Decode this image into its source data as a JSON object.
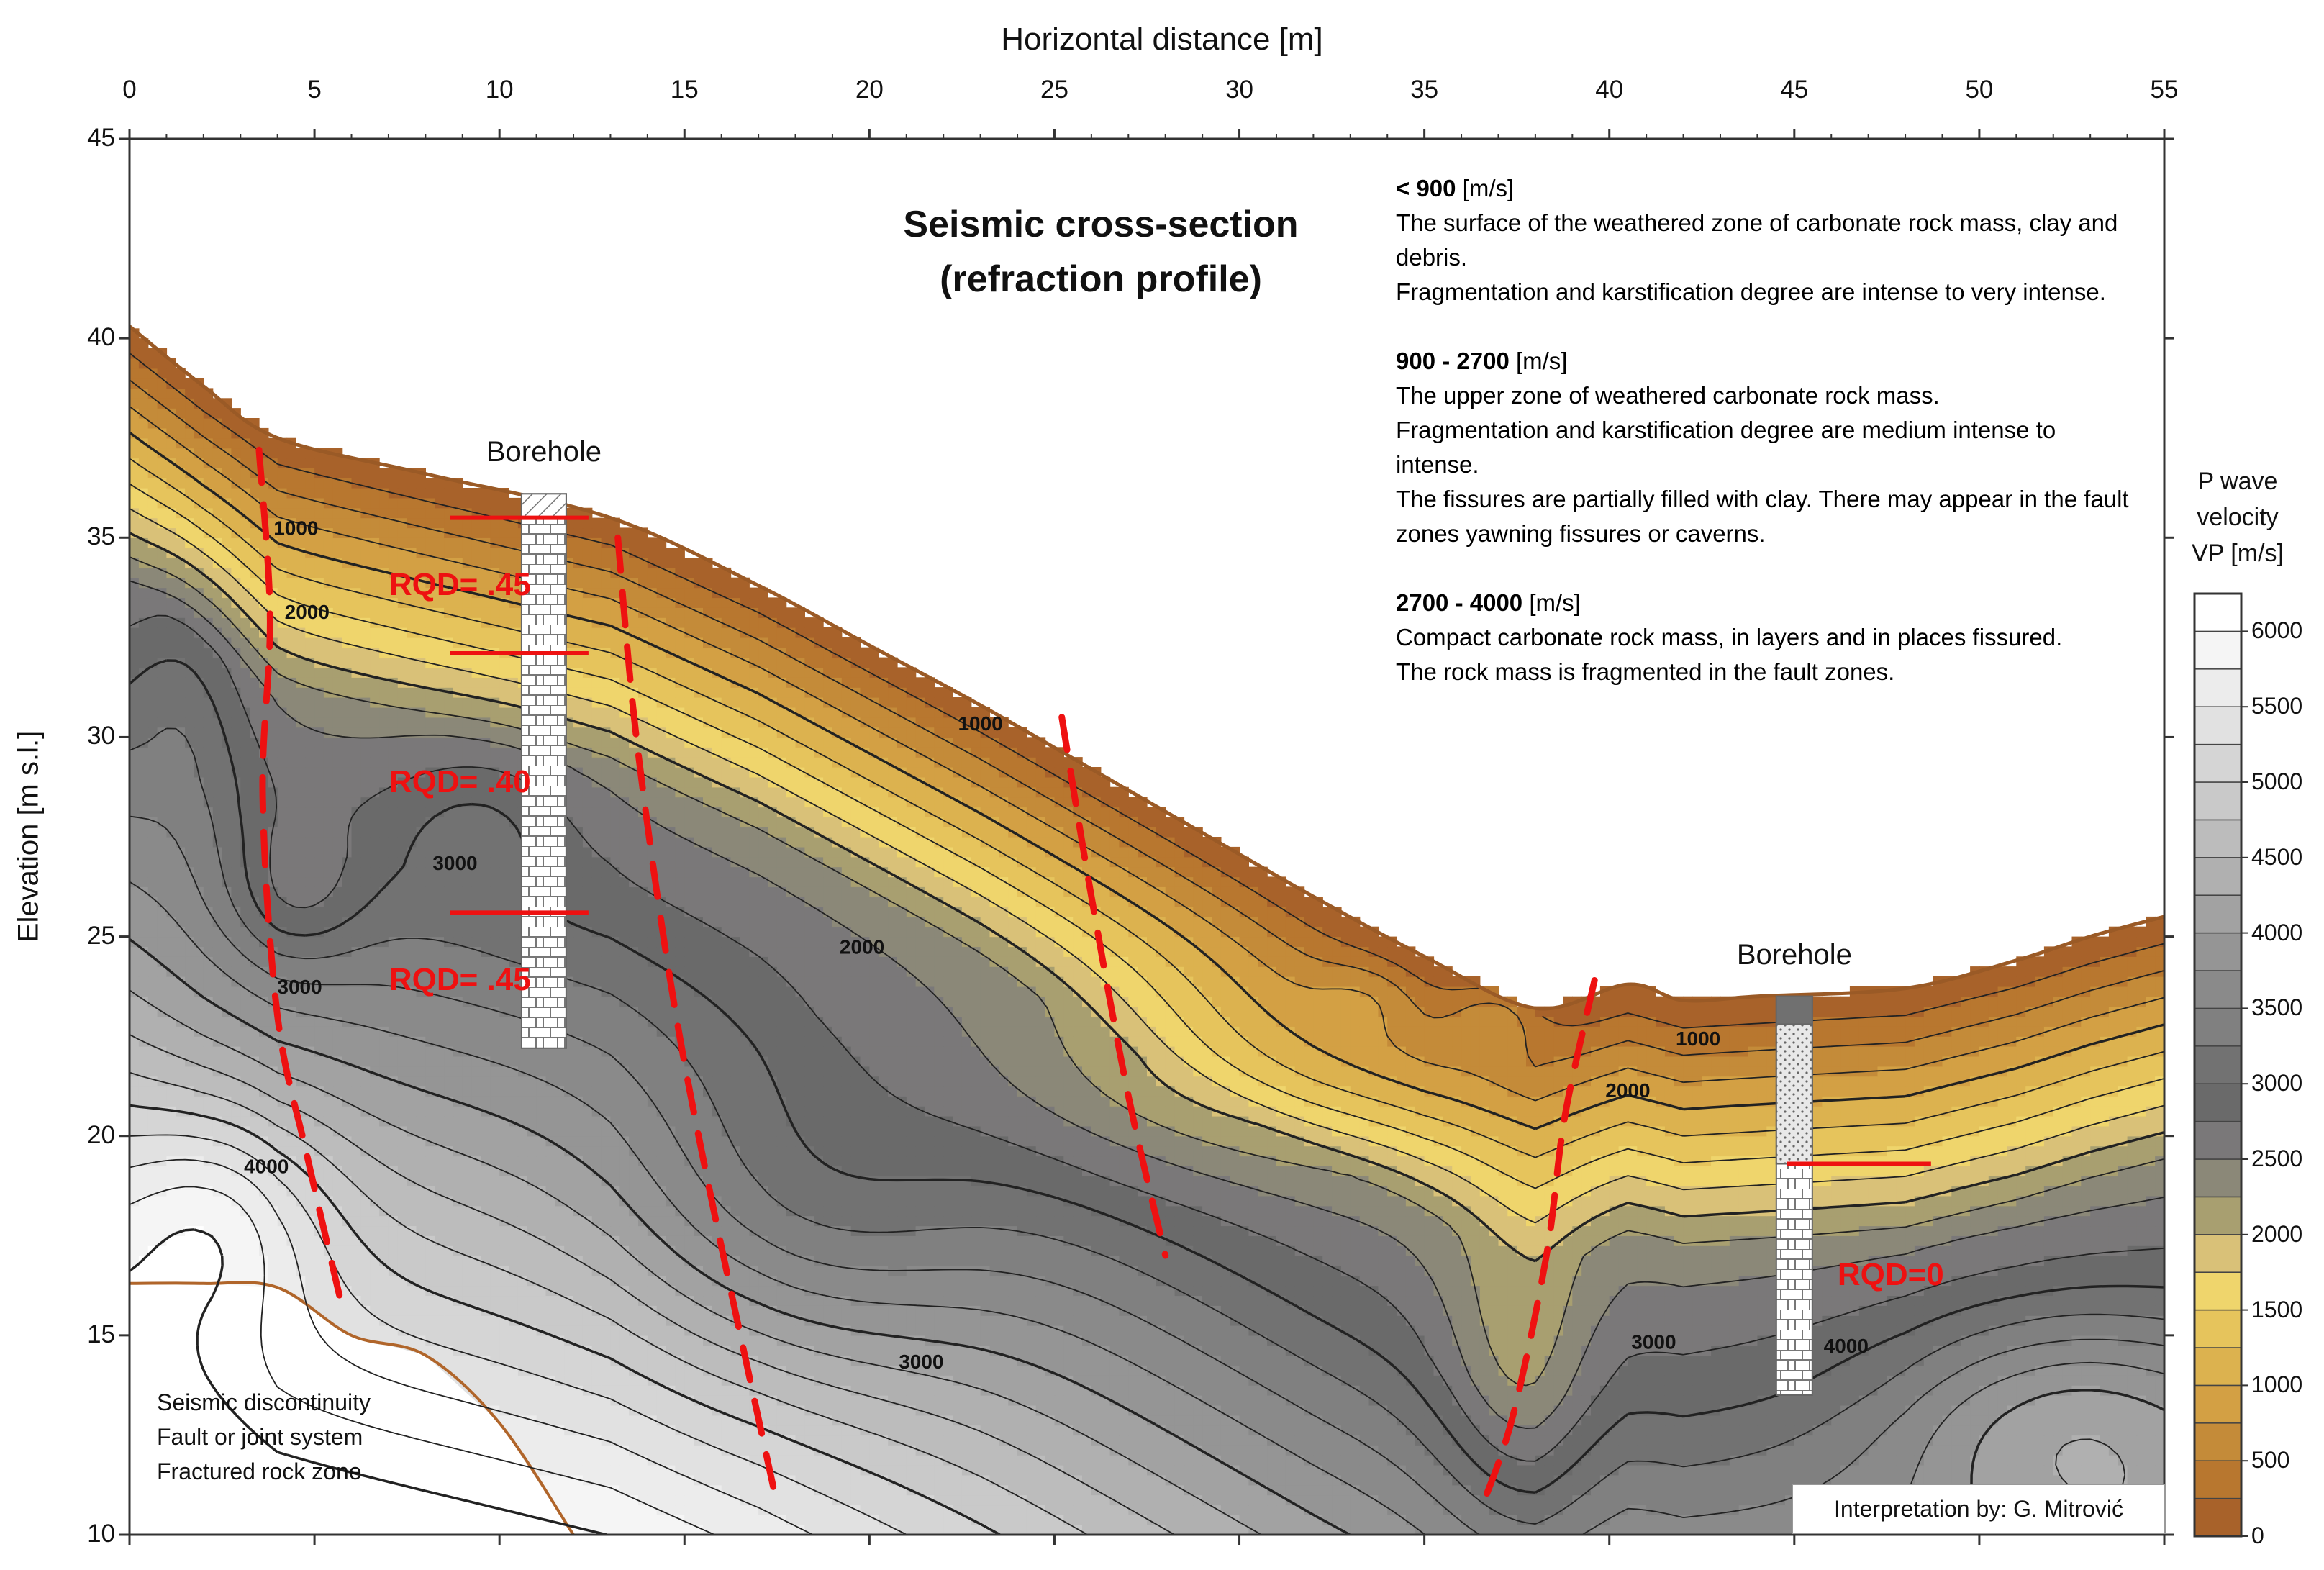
{
  "chart_data": {
    "type": "contour",
    "title": "Seismic cross-section",
    "subtitle": "(refraction profile)",
    "xlabel": "Horizontal distance [m]",
    "ylabel": "Elevation [m s.l.]",
    "xlim": [
      0,
      55
    ],
    "ylim": [
      10,
      45
    ],
    "x_ticks": [
      "0",
      "5",
      "10",
      "15",
      "20",
      "25",
      "30",
      "35",
      "40",
      "45",
      "50",
      "55"
    ],
    "y_ticks": [
      "10",
      "15",
      "20",
      "25",
      "30",
      "35",
      "40",
      "45"
    ],
    "contour_labels": [
      {
        "text": "1000",
        "x": 4.5,
        "y": 35.2
      },
      {
        "text": "2000",
        "x": 4.8,
        "y": 33.1
      },
      {
        "text": "3000",
        "x": 8.8,
        "y": 26.8
      },
      {
        "text": "3000",
        "x": 4.6,
        "y": 23.7
      },
      {
        "text": "4000",
        "x": 3.7,
        "y": 19.2
      },
      {
        "text": "1000",
        "x": 23.0,
        "y": 30.3
      },
      {
        "text": "2000",
        "x": 19.8,
        "y": 24.7
      },
      {
        "text": "3000",
        "x": 21.4,
        "y": 14.3
      },
      {
        "text": "1000",
        "x": 42.4,
        "y": 22.4
      },
      {
        "text": "2000",
        "x": 40.5,
        "y": 21.1
      },
      {
        "text": "3000",
        "x": 41.2,
        "y": 14.8
      },
      {
        "text": "4000",
        "x": 46.4,
        "y": 14.7
      }
    ],
    "surface_profile": [
      [
        0,
        40.3
      ],
      [
        2,
        38.8
      ],
      [
        4,
        37.5
      ],
      [
        8,
        36.6
      ],
      [
        13,
        35.5
      ],
      [
        17,
        33.8
      ],
      [
        20,
        32.3
      ],
      [
        23,
        30.8
      ],
      [
        26,
        29.2
      ],
      [
        29,
        27.6
      ],
      [
        32,
        26.0
      ],
      [
        35,
        24.5
      ],
      [
        38,
        23.2
      ],
      [
        40.5,
        23.8
      ],
      [
        42,
        23.4
      ],
      [
        44,
        23.5
      ],
      [
        48,
        23.7
      ],
      [
        51,
        24.4
      ],
      [
        53,
        25.0
      ],
      [
        55,
        25.5
      ]
    ],
    "bedrock_edge": [
      [
        0,
        16.3
      ],
      [
        2,
        16.3
      ],
      [
        4,
        16.2
      ],
      [
        6,
        15.0
      ],
      [
        8,
        14.5
      ],
      [
        10,
        12.8
      ],
      [
        12,
        10.0
      ]
    ],
    "fault_lines": [
      [
        [
          3.5,
          37.2
        ],
        [
          3.8,
          33.0
        ],
        [
          3.6,
          28.5
        ],
        [
          4.0,
          23.0
        ],
        [
          4.8,
          19.5
        ],
        [
          5.8,
          15.5
        ]
      ],
      [
        [
          13.2,
          35.0
        ],
        [
          13.7,
          30.0
        ],
        [
          14.6,
          24.0
        ],
        [
          15.6,
          19.0
        ],
        [
          17.4,
          11.2
        ]
      ],
      [
        [
          25.2,
          30.5
        ],
        [
          26.0,
          26.0
        ],
        [
          27.0,
          21.0
        ],
        [
          28.0,
          17.0
        ]
      ],
      [
        [
          39.6,
          23.9
        ],
        [
          38.8,
          20.5
        ],
        [
          38.3,
          17.0
        ],
        [
          37.4,
          13.0
        ],
        [
          36.6,
          10.8
        ]
      ]
    ],
    "boreholes": [
      {
        "label": "Borehole",
        "x": 11.2,
        "top": 36.1,
        "bottom": 22.2,
        "rqd": [
          {
            "text": "RQD= .45",
            "top": 35.5,
            "bottom": 32.1
          },
          {
            "text": "RQD= .40",
            "top": 32.1,
            "bottom": 25.6
          },
          {
            "text": "RQD= .45",
            "top": 25.6,
            "bottom": 22.2
          }
        ]
      },
      {
        "label": "Borehole",
        "x": 45.0,
        "top": 23.5,
        "bottom": 13.5,
        "rqd": [
          {
            "text": "RQD=0",
            "top": 19.3,
            "bottom": 13.5
          }
        ]
      }
    ],
    "colorbar": {
      "title_lines": [
        "P wave",
        "velocity",
        "VP [m/s]"
      ],
      "min": 0,
      "max": 6250,
      "step": 250,
      "tick_labels": [
        "0",
        "500",
        "1000",
        "1500",
        "2000",
        "2500",
        "3000",
        "3500",
        "4000",
        "4500",
        "5000",
        "5500",
        "6000"
      ]
    }
  },
  "legend": {
    "zones": [
      {
        "range": "< 900",
        "unit": " [m/s]",
        "lines": [
          "The surface of the weathered zone of carbonate rock mass, clay and",
          "debris.",
          "Fragmentation and karstification degree are intense to very intense."
        ]
      },
      {
        "range": "900 - 2700",
        "unit": " [m/s]",
        "lines": [
          "The upper zone of weathered carbonate rock mass.",
          "Fragmentation and karstification degree are medium intense to",
          "intense.",
          "The fissures are partially filled with clay. There may appear in the fault",
          "zones yawning fissures or caverns."
        ]
      },
      {
        "range": "2700 - 4000",
        "unit": " [m/s]",
        "lines": [
          "Compact carbonate rock mass, in layers and in places fissured.",
          "The rock mass is fragmented in the fault zones."
        ]
      }
    ]
  },
  "key": {
    "lines": [
      "Seismic discontinuity",
      "Fault or joint system",
      "Fractured rock zone"
    ]
  },
  "credit": "Interpretation by: G. Mitrović",
  "colors": {
    "fault": "#ee1111",
    "rqd_text": "#ee1111",
    "velocity_ramp": [
      "#a8622a",
      "#b8772f",
      "#c48b39",
      "#d3a044",
      "#dcb24f",
      "#e6c45c",
      "#efd56c",
      "#d9c178",
      "#a89f70",
      "#8b8878",
      "#7a7879",
      "#6a6a6a",
      "#727272",
      "#808080",
      "#8a8a8a",
      "#959595",
      "#a2a2a2",
      "#b0b0b0",
      "#bcbcbc",
      "#c9c9c9",
      "#d5d5d5",
      "#e1e1e1",
      "#ececec",
      "#f5f5f5",
      "#ffffff"
    ]
  }
}
